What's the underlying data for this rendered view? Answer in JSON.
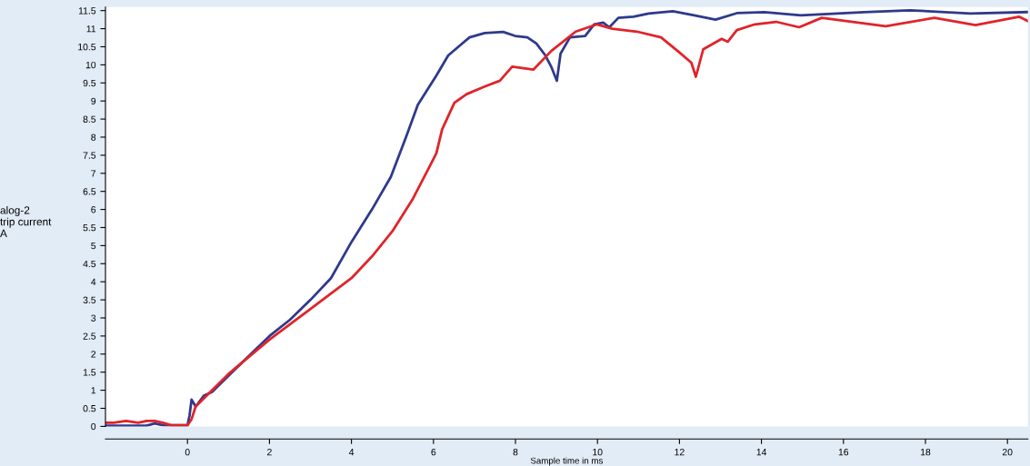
{
  "chart_data": {
    "type": "line",
    "xlabel": "Sample time in ms",
    "ylabel": "alog-2\ntrip current\nA",
    "xlim": [
      -2,
      20.5
    ],
    "ylim": [
      0,
      11.6
    ],
    "xticks": [
      0,
      2,
      4,
      6,
      8,
      10,
      12,
      14,
      16,
      18,
      20
    ],
    "yticks": [
      0,
      0.5,
      1,
      1.5,
      2,
      2.5,
      3,
      3.5,
      4,
      4.5,
      5,
      5.5,
      6,
      6.5,
      7,
      7.5,
      8,
      8.5,
      9,
      9.5,
      10,
      10.5,
      11,
      11.5
    ],
    "grid": false,
    "marker": "none",
    "line_style": "solid",
    "series": [
      {
        "color": "#2e3a8c",
        "x": [
          -2,
          -1.5,
          -1.0,
          -0.8,
          -0.6,
          0,
          0.05,
          0.1,
          0.2,
          0.4,
          0.6,
          1,
          1.5,
          2,
          2.5,
          3,
          3.5,
          4,
          4.5,
          4.96,
          5.33,
          5.62,
          6.07,
          6.36,
          6.66,
          6.88,
          7.25,
          7.7,
          7.99,
          8.29,
          8.51,
          8.73,
          8.88,
          9.01,
          9.1,
          9.33,
          9.7,
          9.92,
          10.14,
          10.29,
          10.51,
          10.88,
          11.25,
          11.84,
          12.36,
          12.88,
          13.4,
          14.07,
          14.96,
          16.51,
          17.62,
          19.1,
          20.5
        ],
        "values": [
          0.02,
          0.02,
          0.02,
          0.08,
          0.03,
          0.03,
          0.3,
          0.74,
          0.55,
          0.85,
          0.95,
          1.4,
          1.95,
          2.5,
          2.95,
          3.5,
          4.1,
          5.1,
          6.0,
          6.9,
          8.0,
          8.9,
          9.7,
          10.26,
          10.55,
          10.76,
          10.88,
          10.91,
          10.8,
          10.76,
          10.59,
          10.26,
          9.93,
          9.56,
          10.31,
          10.76,
          10.8,
          11.12,
          11.17,
          11.04,
          11.3,
          11.33,
          11.42,
          11.48,
          11.37,
          11.25,
          11.43,
          11.46,
          11.37,
          11.46,
          11.51,
          11.42,
          11.46
        ]
      },
      {
        "color": "#e0242a",
        "x": [
          -2,
          -1.8,
          -1.5,
          -1.2,
          -1.0,
          -0.8,
          -0.6,
          -0.4,
          0,
          0.1,
          0.2,
          1,
          2,
          3,
          4,
          4.5,
          5,
          5.5,
          5.77,
          6.07,
          6.21,
          6.51,
          6.81,
          7.25,
          7.62,
          7.92,
          8.44,
          8.88,
          9.47,
          9.99,
          10.36,
          10.96,
          11.55,
          11.99,
          12.29,
          12.4,
          12.58,
          13.03,
          13.18,
          13.4,
          13.84,
          14.36,
          14.92,
          15.47,
          17.03,
          18.22,
          19.22,
          20.29,
          20.5
        ],
        "values": [
          0.1,
          0.1,
          0.15,
          0.1,
          0.15,
          0.15,
          0.1,
          0.03,
          0.03,
          0.2,
          0.55,
          1.45,
          2.4,
          3.25,
          4.1,
          4.7,
          5.4,
          6.3,
          6.89,
          7.55,
          8.21,
          8.95,
          9.19,
          9.4,
          9.56,
          9.95,
          9.87,
          10.39,
          10.92,
          11.12,
          11.0,
          10.92,
          10.76,
          10.35,
          10.06,
          9.67,
          10.43,
          10.72,
          10.64,
          10.96,
          11.12,
          11.19,
          11.04,
          11.3,
          11.07,
          11.3,
          11.1,
          11.33,
          11.21
        ]
      }
    ]
  }
}
